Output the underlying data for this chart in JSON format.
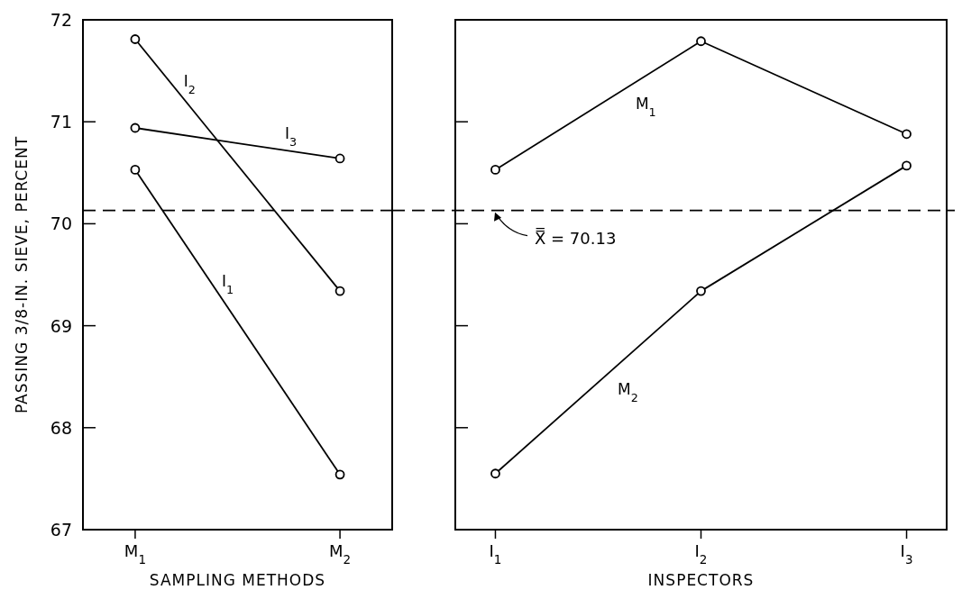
{
  "chart_data": [
    {
      "type": "line",
      "categories": [
        "M$_{1}$",
        "M$_{2}$"
      ],
      "xlabel": "SAMPLING METHODS",
      "ylabel": "PASSING 3/8-IN. SIEVE, PERCENT",
      "ylim": [
        67,
        72
      ],
      "yticks": [
        67,
        68,
        69,
        70,
        71,
        72
      ],
      "marker": "circle",
      "line_style": "solid",
      "series": [
        {
          "name": "I$_{1}$",
          "color": "#000000",
          "values": [
            70.53,
            67.54
          ]
        },
        {
          "name": "I$_{2}$",
          "color": "#000000",
          "values": [
            71.81,
            69.34
          ]
        },
        {
          "name": "I$_{3}$",
          "color": "#000000",
          "values": [
            70.94,
            70.64
          ]
        }
      ],
      "ref_lines": [
        {
          "axis": "y",
          "value": 70.13,
          "line_style": "dashed"
        }
      ]
    },
    {
      "type": "line",
      "categories": [
        "I$_{1}$",
        "I$_{2}$",
        "I$_{3}$"
      ],
      "xlabel": "INSPECTORS",
      "ylim": [
        67,
        72
      ],
      "yticks": [
        67,
        68,
        69,
        70,
        71,
        72
      ],
      "tick_labels": "x",
      "marker": "circle",
      "line_style": "solid",
      "series": [
        {
          "name": "M$_{1}$",
          "color": "#000000",
          "values": [
            70.53,
            71.79,
            70.88
          ]
        },
        {
          "name": "M$_{2}$",
          "color": "#000000",
          "values": [
            67.55,
            69.34,
            70.57
          ]
        }
      ],
      "ref_lines": [
        {
          "axis": "y",
          "value": 70.13,
          "label": "X̿ = 70.13",
          "line_style": "dashed"
        }
      ]
    }
  ]
}
